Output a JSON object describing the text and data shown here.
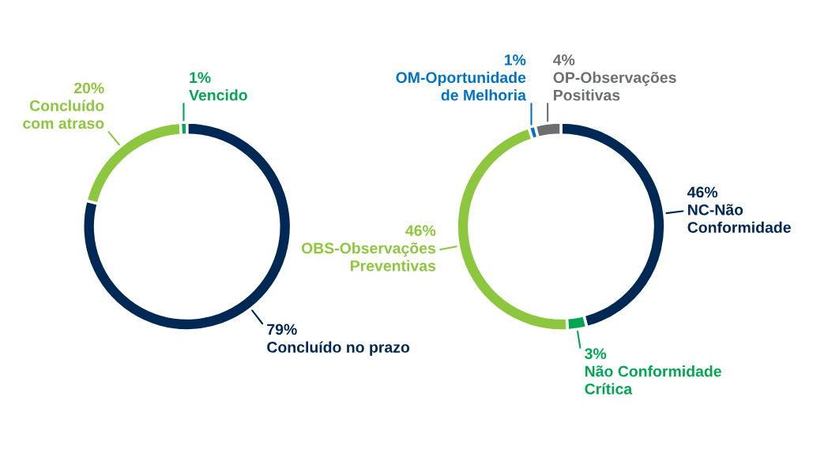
{
  "chart_data": [
    {
      "type": "donut",
      "categories": [
        "Concluído no prazo",
        "Concluído com atraso",
        "Vencido"
      ],
      "values": [
        79,
        20,
        1
      ],
      "colors": [
        "#002855",
        "#8dc63f",
        "#00a651"
      ],
      "value_labels": [
        "79%",
        "20%",
        "1%"
      ]
    },
    {
      "type": "donut",
      "categories": [
        "NC-Não Conformidade",
        "Não Conformidade Crítica",
        "OBS-Observações Preventivas",
        "OM-Oportunidade de Melhoria",
        "OP-Observações Positivas"
      ],
      "values": [
        46,
        3,
        46,
        1,
        4
      ],
      "colors": [
        "#002855",
        "#00a651",
        "#8dc63f",
        "#0072c6",
        "#6d6e71"
      ],
      "value_labels": [
        "46%",
        "3%",
        "46%",
        "1%",
        "4%"
      ]
    }
  ]
}
